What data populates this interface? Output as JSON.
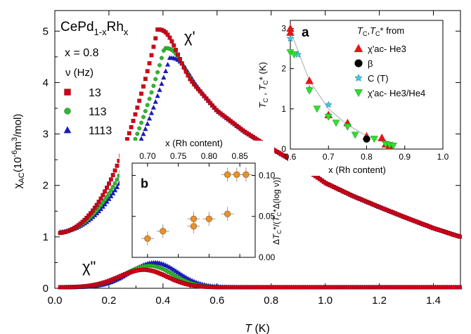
{
  "chart_data": [
    {
      "panel": "main",
      "type": "scatter",
      "xlabel": "T (K)",
      "ylabel": "χAC(10-6m3/mol)",
      "xlim": [
        0,
        1.5
      ],
      "ylim": [
        0,
        5.4
      ],
      "xticks": [
        "0.0",
        "0.2",
        "0.4",
        "0.6",
        "0.8",
        "1.0",
        "1.2",
        "1.4"
      ],
      "yticks": [
        "0",
        "1",
        "2",
        "3",
        "4",
        "5"
      ],
      "sample": "CePd1-xRhx",
      "composition": "x = 0.8",
      "legend_title": "ν (Hz)",
      "curve_labels": {
        "real": "χ'",
        "imag": "χ\""
      },
      "series": [
        {
          "name": "13",
          "color": "#d0001a",
          "marker": "square",
          "real": {
            "peak_T": 0.38,
            "peak": 5.03,
            "start": 1.07
          },
          "imag": {
            "peak_T": 0.33,
            "peak": 0.34
          }
        },
        {
          "name": "113",
          "color": "#2fb82f",
          "marker": "circle",
          "real": {
            "peak_T": 0.405,
            "peak": 4.67,
            "start": 1.08
          },
          "imag": {
            "peak_T": 0.35,
            "peak": 0.42
          }
        },
        {
          "name": "1113",
          "color": "#1a1ab8",
          "marker": "triangle",
          "real": {
            "peak_T": 0.425,
            "peak": 4.48,
            "start": 1.09
          },
          "imag": {
            "peak_T": 0.37,
            "peak": 0.48
          }
        }
      ],
      "tail": [
        [
          0.5,
          4.05
        ],
        [
          0.6,
          3.45
        ],
        [
          0.7,
          3.05
        ],
        [
          0.8,
          2.72
        ],
        [
          0.9,
          2.42
        ],
        [
          1.0,
          2.05
        ],
        [
          1.1,
          1.8
        ],
        [
          1.2,
          1.58
        ],
        [
          1.3,
          1.37
        ],
        [
          1.4,
          1.17
        ],
        [
          1.5,
          1.0
        ]
      ]
    },
    {
      "panel": "a",
      "type": "scatter",
      "xlabel": "x (Rh content)",
      "ylabel": "TC , TC* (K)",
      "xlim": [
        0.6,
        1.0
      ],
      "ylim": [
        0,
        3.2
      ],
      "xticks": [
        "0.6",
        "0.7",
        "0.8",
        "0.9",
        "1.0"
      ],
      "yticks": [
        "0",
        "1",
        "2",
        "3"
      ],
      "legend_title": "TC,TC*  from",
      "series": [
        {
          "name": "χ'ac- He3",
          "color": "#e01818",
          "marker": "triangle-up",
          "points": [
            [
              0.6,
              3.0
            ],
            [
              0.6,
              2.9
            ],
            [
              0.65,
              1.7
            ],
            [
              0.7,
              0.85
            ],
            [
              0.75,
              0.65
            ],
            [
              0.8,
              0.32
            ],
            [
              0.84,
              0.28
            ],
            [
              0.85,
              0.12
            ],
            [
              0.86,
              0.08
            ]
          ]
        },
        {
          "name": "β",
          "color": "#000000",
          "marker": "circle",
          "points": [
            [
              0.8,
              0.25
            ]
          ]
        },
        {
          "name": "C (T)",
          "color": "#3ec8e8",
          "marker": "star",
          "points": [
            [
              0.6,
              2.75
            ],
            [
              0.62,
              2.35
            ],
            [
              0.65,
              1.5
            ],
            [
              0.7,
              1.1
            ]
          ]
        },
        {
          "name": "χ'ac- He3/He4",
          "color": "#2ee02e",
          "marker": "triangle-down",
          "points": [
            [
              0.6,
              2.4
            ],
            [
              0.61,
              2.35
            ],
            [
              0.65,
              1.45
            ],
            [
              0.67,
              1.0
            ],
            [
              0.7,
              0.8
            ],
            [
              0.72,
              0.65
            ],
            [
              0.75,
              0.55
            ],
            [
              0.77,
              0.35
            ],
            [
              0.82,
              0.25
            ],
            [
              0.85,
              0.12
            ],
            [
              0.86,
              0.1
            ],
            [
              0.87,
              0.08
            ]
          ]
        }
      ],
      "fit": [
        [
          0.6,
          2.95
        ],
        [
          0.65,
          1.7
        ],
        [
          0.7,
          1.0
        ],
        [
          0.75,
          0.6
        ],
        [
          0.8,
          0.33
        ],
        [
          0.85,
          0.15
        ],
        [
          0.875,
          0.07
        ]
      ]
    },
    {
      "panel": "b",
      "type": "scatter",
      "xlabel": "x (Rh content)",
      "ylabel": "ΔTC*/(TC*Δ(log ν))",
      "xlim": [
        0.675,
        0.875
      ],
      "ylim": [
        0,
        0.115
      ],
      "xticks": [
        "0.70",
        "0.75",
        "0.80",
        "0.85"
      ],
      "yticks": [
        "0.00",
        "0.05",
        "0.10"
      ],
      "series": [
        {
          "name": "",
          "color": "#e8922a",
          "marker": "circle",
          "points": [
            [
              0.7,
              0.023
            ],
            [
              0.725,
              0.032
            ],
            [
              0.775,
              0.038
            ],
            [
              0.775,
              0.047
            ],
            [
              0.8,
              0.047
            ],
            [
              0.83,
              0.053
            ],
            [
              0.83,
              0.101
            ],
            [
              0.845,
              0.101
            ],
            [
              0.86,
              0.101
            ]
          ]
        }
      ]
    }
  ]
}
